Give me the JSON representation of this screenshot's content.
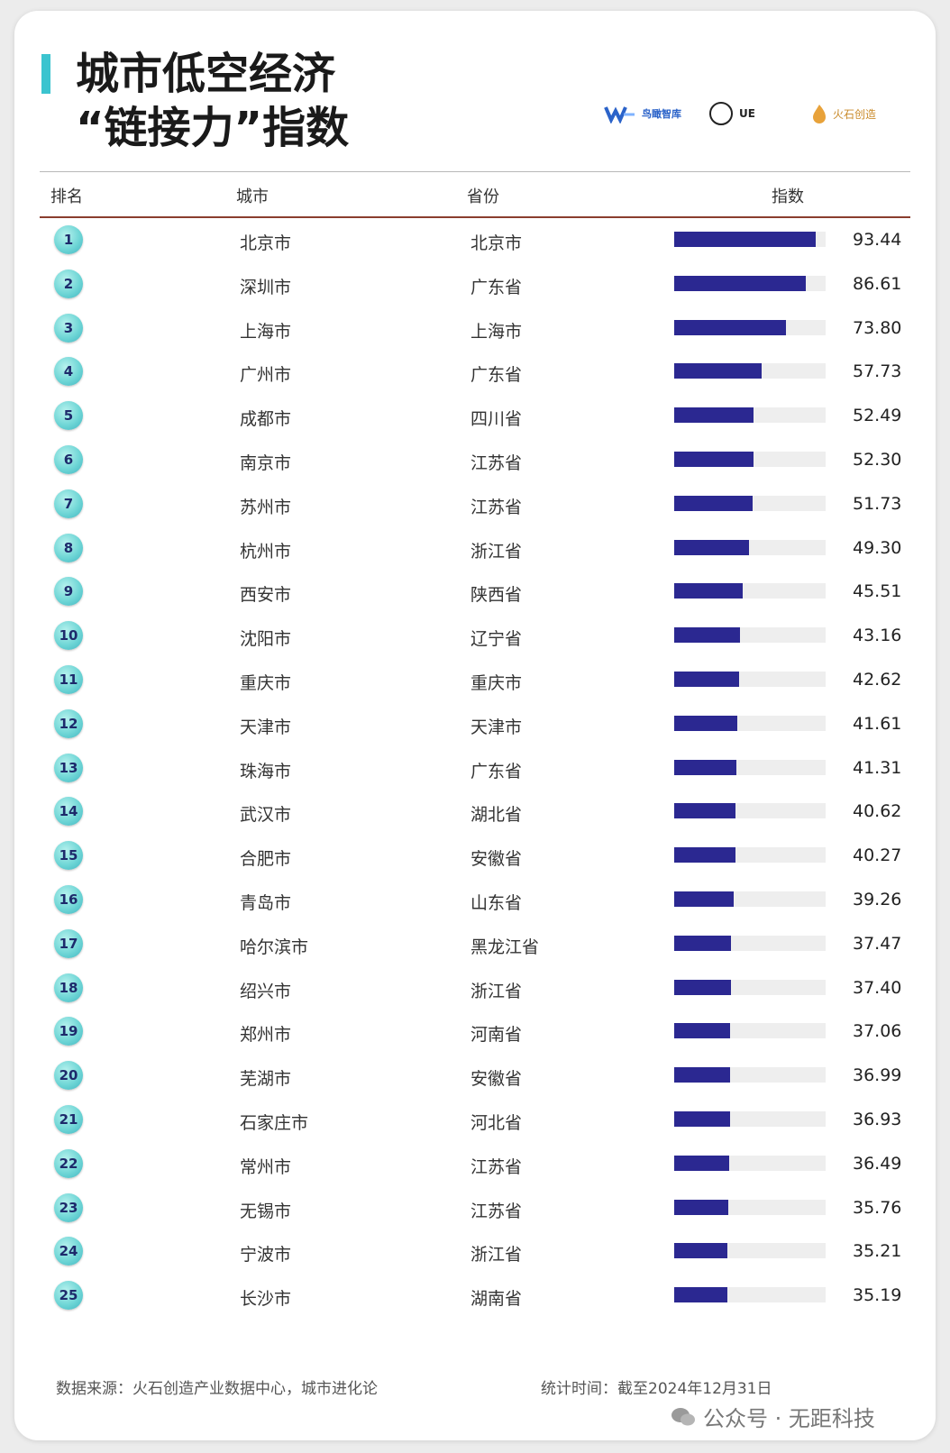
{
  "title": {
    "line1": "城市低空经济",
    "line2": "“链接力”指数"
  },
  "logos": [
    "鸟瞰智库",
    "UE",
    "火石创造"
  ],
  "headers": {
    "rank": "排名",
    "city": "城市",
    "province": "省份",
    "index": "指数"
  },
  "colors": {
    "bar": "#2b2891",
    "track": "#eeeeee",
    "accent": "#3bc4cf",
    "rank_badge": "#6fd6d6"
  },
  "chart_data": {
    "type": "bar",
    "orientation": "horizontal",
    "xlim": [
      0,
      100
    ],
    "rows": [
      {
        "rank": "1",
        "city": "北京市",
        "province": "北京市",
        "value": 93.44,
        "label": "93.44"
      },
      {
        "rank": "2",
        "city": "深圳市",
        "province": "广东省",
        "value": 86.61,
        "label": "86.61"
      },
      {
        "rank": "3",
        "city": "上海市",
        "province": "上海市",
        "value": 73.8,
        "label": "73.80"
      },
      {
        "rank": "4",
        "city": "广州市",
        "province": "广东省",
        "value": 57.73,
        "label": "57.73"
      },
      {
        "rank": "5",
        "city": "成都市",
        "province": "四川省",
        "value": 52.49,
        "label": "52.49"
      },
      {
        "rank": "6",
        "city": "南京市",
        "province": "江苏省",
        "value": 52.3,
        "label": "52.30"
      },
      {
        "rank": "7",
        "city": "苏州市",
        "province": "江苏省",
        "value": 51.73,
        "label": "51.73"
      },
      {
        "rank": "8",
        "city": "杭州市",
        "province": "浙江省",
        "value": 49.3,
        "label": "49.30"
      },
      {
        "rank": "9",
        "city": "西安市",
        "province": "陕西省",
        "value": 45.51,
        "label": "45.51"
      },
      {
        "rank": "10",
        "city": "沈阳市",
        "province": "辽宁省",
        "value": 43.16,
        "label": "43.16"
      },
      {
        "rank": "11",
        "city": "重庆市",
        "province": "重庆市",
        "value": 42.62,
        "label": "42.62"
      },
      {
        "rank": "12",
        "city": "天津市",
        "province": "天津市",
        "value": 41.61,
        "label": "41.61"
      },
      {
        "rank": "13",
        "city": "珠海市",
        "province": "广东省",
        "value": 41.31,
        "label": "41.31"
      },
      {
        "rank": "14",
        "city": "武汉市",
        "province": "湖北省",
        "value": 40.62,
        "label": "40.62"
      },
      {
        "rank": "15",
        "city": "合肥市",
        "province": "安徽省",
        "value": 40.27,
        "label": "40.27"
      },
      {
        "rank": "16",
        "city": "青岛市",
        "province": "山东省",
        "value": 39.26,
        "label": "39.26"
      },
      {
        "rank": "17",
        "city": "哈尔滨市",
        "province": "黑龙江省",
        "value": 37.47,
        "label": "37.47"
      },
      {
        "rank": "18",
        "city": "绍兴市",
        "province": "浙江省",
        "value": 37.4,
        "label": "37.40"
      },
      {
        "rank": "19",
        "city": "郑州市",
        "province": "河南省",
        "value": 37.06,
        "label": "37.06"
      },
      {
        "rank": "20",
        "city": "芜湖市",
        "province": "安徽省",
        "value": 36.99,
        "label": "36.99"
      },
      {
        "rank": "21",
        "city": "石家庄市",
        "province": "河北省",
        "value": 36.93,
        "label": "36.93"
      },
      {
        "rank": "22",
        "city": "常州市",
        "province": "江苏省",
        "value": 36.49,
        "label": "36.49"
      },
      {
        "rank": "23",
        "city": "无锡市",
        "province": "江苏省",
        "value": 35.76,
        "label": "35.76"
      },
      {
        "rank": "24",
        "city": "宁波市",
        "province": "浙江省",
        "value": 35.21,
        "label": "35.21"
      },
      {
        "rank": "25",
        "city": "长沙市",
        "province": "湖南省",
        "value": 35.19,
        "label": "35.19"
      }
    ]
  },
  "footer": {
    "source": "数据来源：火石创造产业数据中心，城市进化论",
    "time": "统计时间：截至2024年12月31日"
  },
  "watermark": "公众号 · 无距科技"
}
